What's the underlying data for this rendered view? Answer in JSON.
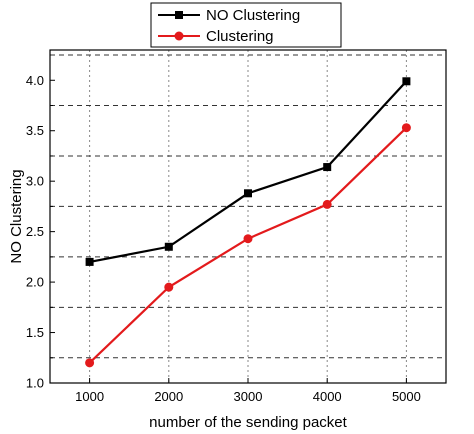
{
  "chart_data": {
    "type": "line",
    "xlabel": "number of the sending packet",
    "ylabel": "NO Clustering",
    "x": [
      1000,
      2000,
      3000,
      4000,
      5000
    ],
    "xlim": [
      500,
      5500
    ],
    "ylim": [
      1.0,
      4.3
    ],
    "xticks": [
      "1000",
      "2000",
      "3000",
      "4000",
      "5000"
    ],
    "yticks": [
      "1.0",
      "1.5",
      "2.0",
      "2.5",
      "3.0",
      "3.5",
      "4.0"
    ],
    "grid": "vertical dotted at x ticks; horizontal dashed between y ticks",
    "legend_position": "top-left",
    "series": [
      {
        "name": "NO Clustering",
        "color": "#000000",
        "marker": "square",
        "values": [
          2.2,
          2.35,
          2.88,
          3.14,
          3.99
        ]
      },
      {
        "name": "Clustering",
        "color": "#e31a1c",
        "marker": "circle",
        "values": [
          1.2,
          1.95,
          2.43,
          2.77,
          3.53
        ]
      }
    ]
  }
}
